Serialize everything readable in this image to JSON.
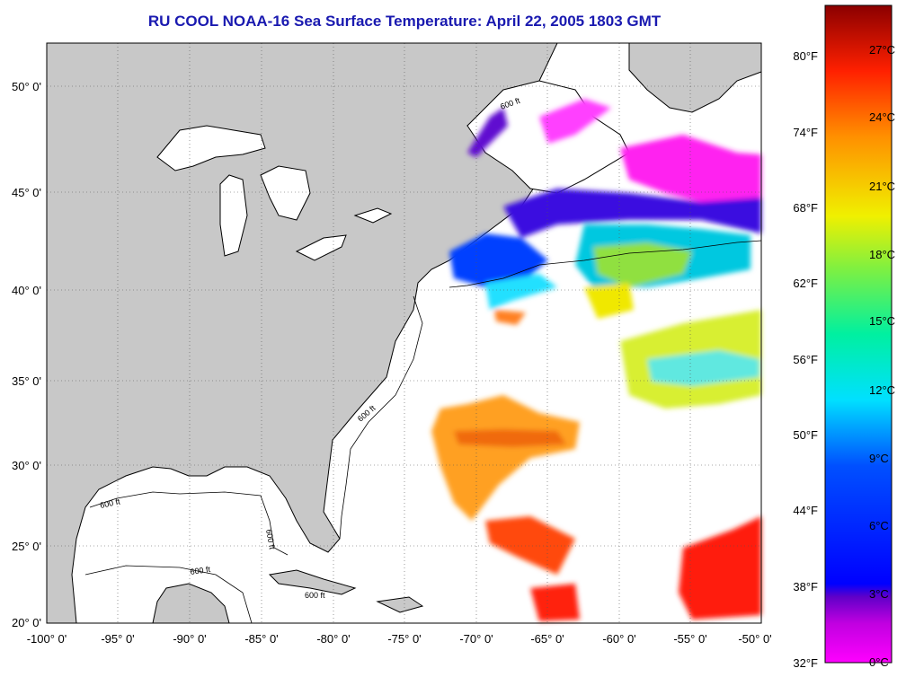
{
  "title": "RU COOL  NOAA-16  Sea Surface Temperature:  April 22, 2005 1803 GMT",
  "map": {
    "lon_range": [
      -100,
      -50
    ],
    "lat_range": [
      20,
      52
    ],
    "x_ticks": [
      "-100° 0'",
      "-95° 0'",
      "-90° 0'",
      "-85° 0'",
      "-80° 0'",
      "-75° 0'",
      "-70° 0'",
      "-65° 0'",
      "-60° 0'",
      "-55° 0'",
      "-50° 0'"
    ],
    "y_ticks": [
      "50° 0'",
      "45° 0'",
      "40° 0'",
      "35° 0'",
      "30° 0'",
      "25° 0'",
      "20° 0'"
    ],
    "contour_label": "600 ft",
    "land_color": "#c8c8c8",
    "grid": "dotted"
  },
  "colorbar": {
    "fahrenheit": [
      "80°F",
      "74°F",
      "68°F",
      "62°F",
      "56°F",
      "50°F",
      "44°F",
      "38°F",
      "32°F"
    ],
    "celsius": [
      "27°C",
      "24°C",
      "21°C",
      "18°C",
      "15°C",
      "12°C",
      "9°C",
      "6°C",
      "3°C",
      "0°C"
    ]
  }
}
